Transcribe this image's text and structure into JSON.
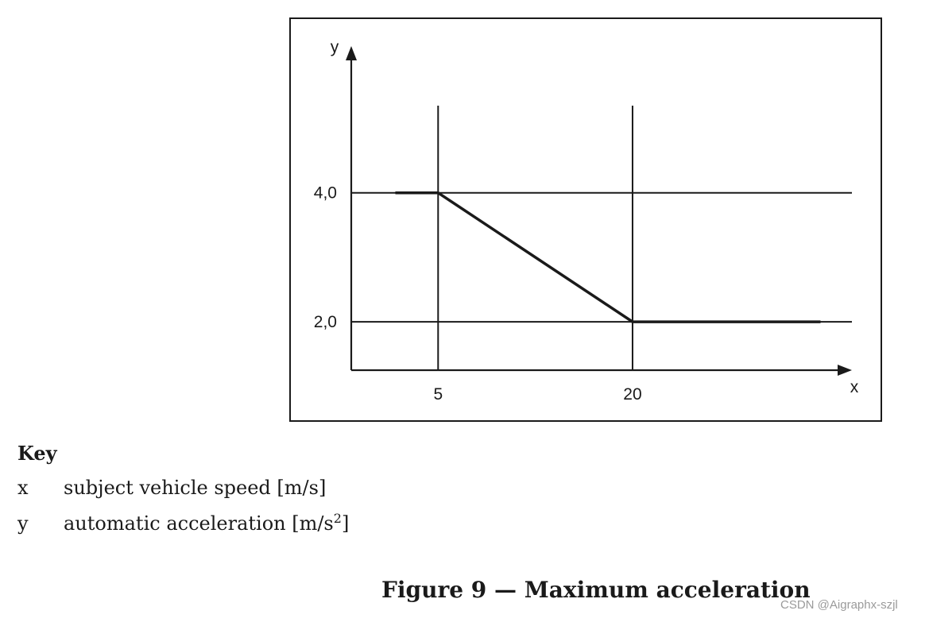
{
  "chart_data": {
    "type": "line",
    "xlabel": "x",
    "ylabel": "y",
    "x_ticks": [
      {
        "value": 5,
        "label": "5"
      },
      {
        "value": 20,
        "label": "20"
      }
    ],
    "y_ticks": [
      {
        "value": 2.0,
        "label": "2,0"
      },
      {
        "value": 4.0,
        "label": "4,0"
      }
    ],
    "xlim": [
      -1.7,
      36.8
    ],
    "ylim": [
      1.25,
      6.25
    ],
    "grid": "reference lines at tick values",
    "legend": "none",
    "series": [
      {
        "points": [
          {
            "x": 1.7,
            "y": 4.0
          },
          {
            "x": 5,
            "y": 4.0
          },
          {
            "x": 20,
            "y": 2.0
          },
          {
            "x": 34.5,
            "y": 2.0
          }
        ]
      }
    ]
  },
  "key": {
    "title": "Key",
    "rows": [
      {
        "symbol": "x",
        "text": "subject vehicle speed [m/s]",
        "sup": ""
      },
      {
        "symbol": "y",
        "text": "automatic acceleration [m/s",
        "sup": "2",
        "tail": "]"
      }
    ]
  },
  "caption": "Figure 9 — Maximum acceleration",
  "watermark": "CSDN @Aigraphx-szjl",
  "colors": {
    "ink": "#1a1a1a",
    "watermark": "#9a9a9a"
  }
}
